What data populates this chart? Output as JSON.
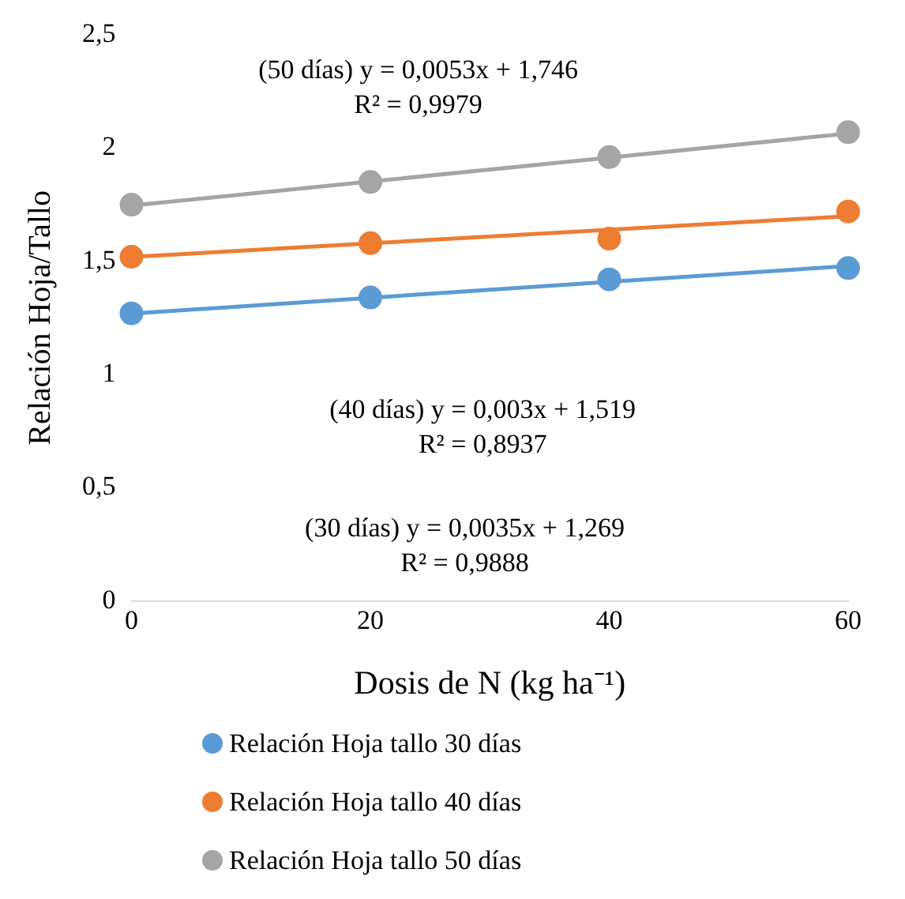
{
  "chart_data": {
    "type": "scatter",
    "xlabel": "Dosis de N (kg ha⁻¹)",
    "ylabel": "Relación Hoja/Tallo",
    "x": [
      0,
      20,
      40,
      60
    ],
    "xlim": [
      0,
      60
    ],
    "xticks": [
      0,
      20,
      40,
      60
    ],
    "ylim": [
      0,
      2.5
    ],
    "yticks": [
      0,
      {
        "value": 0.5,
        "label": "0,5"
      },
      1,
      {
        "value": 1.5,
        "label": "1,5"
      },
      2,
      {
        "value": 2.5,
        "label": "2,5"
      }
    ],
    "grid": false,
    "legend": "bottom",
    "series": [
      {
        "name": "Relación Hoja tallo 30 días",
        "marker": "circle",
        "color": "#5b9bd5",
        "values": [
          1.27,
          1.34,
          1.42,
          1.47
        ]
      },
      {
        "name": "Relación Hoja tallo 40 días",
        "marker": "circle",
        "color": "#ed7d31",
        "values": [
          1.52,
          1.58,
          1.6,
          1.72
        ]
      },
      {
        "name": "Relación Hoja tallo 50 días",
        "marker": "circle",
        "color": "#a5a5a5",
        "values": [
          1.75,
          1.85,
          1.96,
          2.07
        ]
      },
      {
        "type": "line",
        "marker": "none",
        "color": "#5b9bd5",
        "values": [
          1.269,
          1.339,
          1.409,
          1.479
        ]
      },
      {
        "type": "line",
        "marker": "none",
        "color": "#ed7d31",
        "values": [
          1.519,
          1.579,
          1.639,
          1.699
        ]
      },
      {
        "type": "line",
        "marker": "none",
        "color": "#a5a5a5",
        "values": [
          1.746,
          1.852,
          1.958,
          2.064
        ]
      }
    ],
    "annotations": [
      "(50 días) y = 0,0053x + 1,746\nR² = 0,9979",
      "(40 días) y = 0,003x + 1,519\nR² = 0,8937",
      "(30 días) y = 0,0035x + 1,269\nR² = 0,9888"
    ]
  }
}
